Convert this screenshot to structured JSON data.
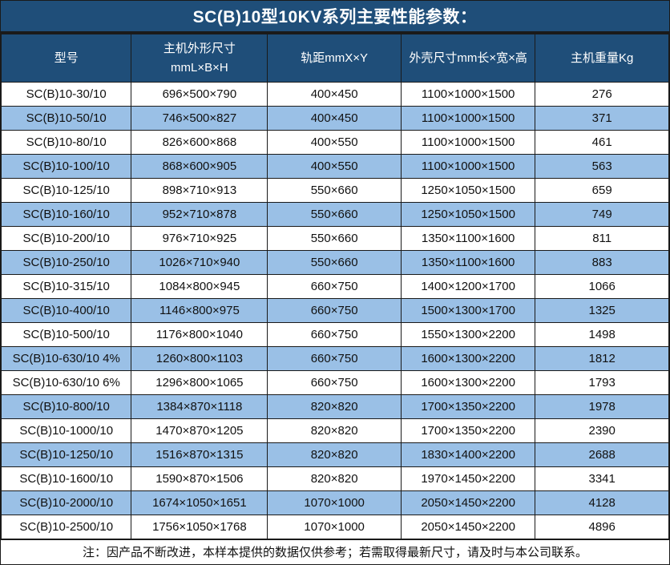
{
  "title": "SC(B)10型10KV系列主要性能参数：",
  "colors": {
    "header_bg": "#1F4E79",
    "stripe_bg": "#9AC0E6",
    "grid_border": "#1A1A1A",
    "header_text": "#FFFFFF",
    "body_text": "#111111"
  },
  "table": {
    "columns": [
      "型号",
      "主机外形尺寸\nmmL×B×H",
      "轨距mmX×Y",
      "外壳尺寸mm长×宽×高",
      "主机重量Kg"
    ],
    "column_keys": [
      "model",
      "main-dimensions",
      "track-gauge",
      "enclosure-dimensions",
      "weight"
    ],
    "rows": [
      [
        "SC(B)10-30/10",
        "696×500×790",
        "400×450",
        "1100×1000×1500",
        "276"
      ],
      [
        "SC(B)10-50/10",
        "746×500×827",
        "400×450",
        "1100×1000×1500",
        "371"
      ],
      [
        "SC(B)10-80/10",
        "826×600×868",
        "400×550",
        "1100×1000×1500",
        "461"
      ],
      [
        "SC(B)10-100/10",
        "868×600×905",
        "400×550",
        "1100×1000×1500",
        "563"
      ],
      [
        "SC(B)10-125/10",
        "898×710×913",
        "550×660",
        "1250×1050×1500",
        "659"
      ],
      [
        "SC(B)10-160/10",
        "952×710×878",
        "550×660",
        "1250×1050×1500",
        "749"
      ],
      [
        "SC(B)10-200/10",
        "976×710×925",
        "550×660",
        "1350×1100×1600",
        "811"
      ],
      [
        "SC(B)10-250/10",
        "1026×710×940",
        "550×660",
        "1350×1100×1600",
        "883"
      ],
      [
        "SC(B)10-315/10",
        "1084×800×945",
        "660×750",
        "1400×1200×1700",
        "1066"
      ],
      [
        "SC(B)10-400/10",
        "1146×800×975",
        "660×750",
        "1500×1300×1700",
        "1325"
      ],
      [
        "SC(B)10-500/10",
        "1176×800×1040",
        "660×750",
        "1550×1300×2200",
        "1498"
      ],
      [
        "SC(B)10-630/10 4%",
        "1260×800×1103",
        "660×750",
        "1600×1300×2200",
        "1812"
      ],
      [
        "SC(B)10-630/10 6%",
        "1296×800×1065",
        "660×750",
        "1600×1300×2200",
        "1793"
      ],
      [
        "SC(B)10-800/10",
        "1384×870×1118",
        "820×820",
        "1700×1350×2200",
        "1978"
      ],
      [
        "SC(B)10-1000/10",
        "1470×870×1205",
        "820×820",
        "1700×1350×2200",
        "2390"
      ],
      [
        "SC(B)10-1250/10",
        "1516×870×1315",
        "820×820",
        "1830×1400×2200",
        "2688"
      ],
      [
        "SC(B)10-1600/10",
        "1590×870×1506",
        "820×820",
        "1970×1450×2200",
        "3341"
      ],
      [
        "SC(B)10-2000/10",
        "1674×1050×1651",
        "1070×1000",
        "2050×1450×2200",
        "4128"
      ],
      [
        "SC(B)10-2500/10",
        "1756×1050×1768",
        "1070×1000",
        "2050×1450×2200",
        "4896"
      ]
    ]
  },
  "footer_note": "注：因产品不断改进，本样本提供的数据仅供参考；若需取得最新尺寸，请及时与本公司联系。"
}
